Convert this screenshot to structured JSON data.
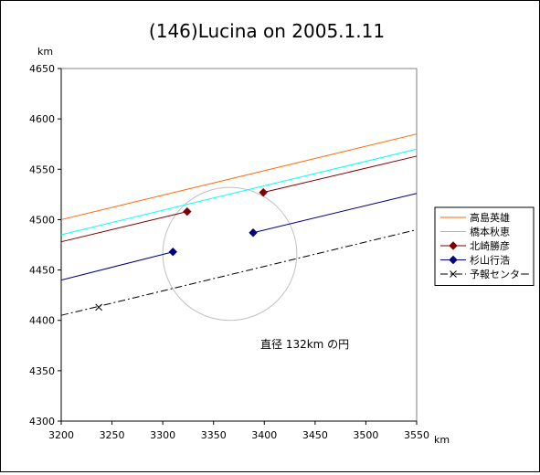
{
  "chart_data": {
    "type": "line",
    "title": "(146)Lucina on 2005.1.11",
    "xunit": "km",
    "yunit": "km",
    "xlim": [
      3200,
      3550
    ],
    "ylim": [
      4300,
      4650
    ],
    "xticks": [
      3200,
      3250,
      3300,
      3350,
      3400,
      3450,
      3500,
      3550
    ],
    "yticks": [
      4300,
      4350,
      4400,
      4450,
      4500,
      4550,
      4600,
      4650
    ],
    "grid": false,
    "legend_position": "right",
    "circle": {
      "cx": 3366,
      "cy": 4466,
      "r": 66,
      "color": "#c0c0c0"
    },
    "annotation": "直径 132km の円",
    "series": [
      {
        "name": "高島英雄",
        "color": "#ff6600",
        "style": "solid",
        "marker": "none",
        "segments": [
          [
            [
              3200,
              4500
            ],
            [
              3550,
              4585
            ]
          ]
        ]
      },
      {
        "name": "橋本秋恵",
        "color": "#00ffff",
        "style": "solid",
        "marker": "none",
        "segments": [
          [
            [
              3200,
              4485
            ],
            [
              3550,
              4570
            ]
          ]
        ]
      },
      {
        "name": "北崎勝彦",
        "color": "#800000",
        "style": "solid",
        "marker": "diamond",
        "segments": [
          [
            [
              3200,
              4478
            ],
            [
              3324,
              4508
            ]
          ],
          [
            [
              3399,
              4527
            ],
            [
              3550,
              4563
            ]
          ]
        ],
        "points": [
          [
            3324,
            4508
          ],
          [
            3399,
            4527
          ]
        ]
      },
      {
        "name": "杉山行浩",
        "color": "#000080",
        "style": "solid",
        "marker": "diamond",
        "segments": [
          [
            [
              3200,
              4440
            ],
            [
              3310,
              4468
            ]
          ],
          [
            [
              3389,
              4487
            ],
            [
              3550,
              4526
            ]
          ]
        ],
        "points": [
          [
            3310,
            4468
          ],
          [
            3389,
            4487
          ]
        ]
      },
      {
        "name": "予報センター",
        "color": "#000000",
        "style": "dashdot",
        "marker": "x",
        "segments": [
          [
            [
              3200,
              4405
            ],
            [
              3550,
              4490
            ]
          ]
        ],
        "points": [
          [
            3237,
            4413
          ]
        ]
      }
    ]
  }
}
